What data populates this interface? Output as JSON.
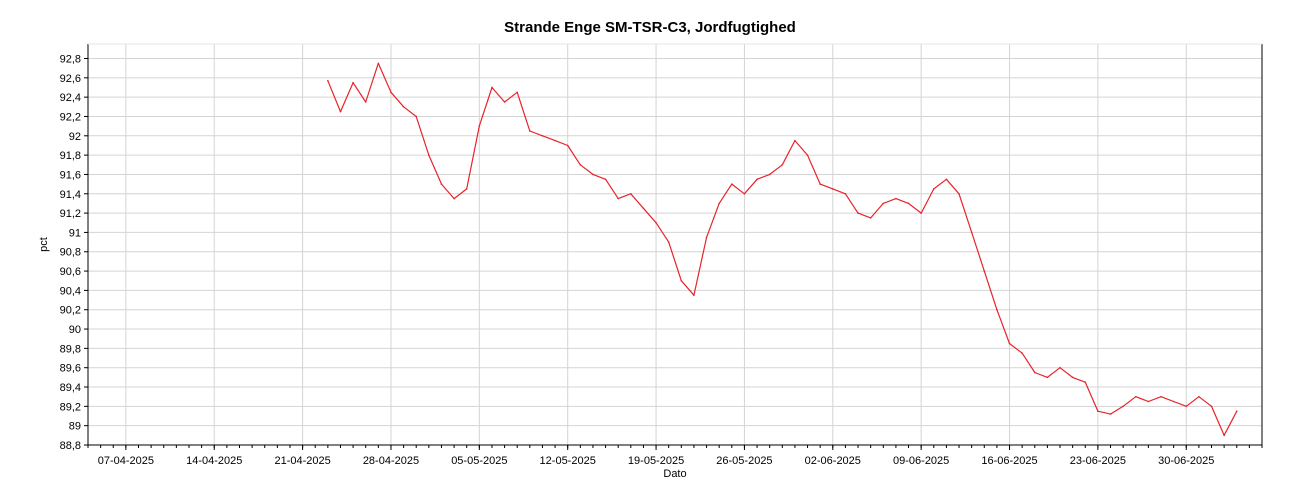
{
  "chart_data": {
    "type": "line",
    "title": "Strande Enge SM-TSR-C3, Jordfugtighed",
    "xlabel": "Dato",
    "ylabel": "pct",
    "x_ticks": [
      "07-04-2025",
      "14-04-2025",
      "21-04-2025",
      "28-04-2025",
      "05-05-2025",
      "12-05-2025",
      "19-05-2025",
      "26-05-2025",
      "02-06-2025",
      "09-06-2025",
      "16-06-2025",
      "23-06-2025",
      "30-06-2025"
    ],
    "y_ticks": [
      "88,8",
      "89",
      "89,2",
      "89,4",
      "89,6",
      "89,8",
      "90",
      "90,2",
      "90,4",
      "90,6",
      "90,8",
      "91",
      "91,2",
      "91,4",
      "91,6",
      "91,8",
      "92",
      "92,2",
      "92,4",
      "92,6",
      "92,8"
    ],
    "xlim": [
      "2025-04-04",
      "2025-07-06"
    ],
    "ylim": [
      88.8,
      92.95
    ],
    "grid": true,
    "series": [
      {
        "color": "#e8232a",
        "points": [
          [
            "2025-04-23",
            92.57
          ],
          [
            "2025-04-24",
            92.25
          ],
          [
            "2025-04-25",
            92.55
          ],
          [
            "2025-04-26",
            92.35
          ],
          [
            "2025-04-27",
            92.75
          ],
          [
            "2025-04-28",
            92.45
          ],
          [
            "2025-04-29",
            92.3
          ],
          [
            "2025-04-30",
            92.2
          ],
          [
            "2025-05-01",
            91.8
          ],
          [
            "2025-05-02",
            91.5
          ],
          [
            "2025-05-03",
            91.35
          ],
          [
            "2025-05-04",
            91.45
          ],
          [
            "2025-05-05",
            92.1
          ],
          [
            "2025-05-06",
            92.5
          ],
          [
            "2025-05-07",
            92.35
          ],
          [
            "2025-05-08",
            92.45
          ],
          [
            "2025-05-09",
            92.05
          ],
          [
            "2025-05-10",
            92.0
          ],
          [
            "2025-05-11",
            91.95
          ],
          [
            "2025-05-12",
            91.9
          ],
          [
            "2025-05-13",
            91.7
          ],
          [
            "2025-05-14",
            91.6
          ],
          [
            "2025-05-15",
            91.55
          ],
          [
            "2025-05-16",
            91.35
          ],
          [
            "2025-05-17",
            91.4
          ],
          [
            "2025-05-18",
            91.25
          ],
          [
            "2025-05-19",
            91.1
          ],
          [
            "2025-05-20",
            90.9
          ],
          [
            "2025-05-21",
            90.5
          ],
          [
            "2025-05-22",
            90.35
          ],
          [
            "2025-05-23",
            90.95
          ],
          [
            "2025-05-24",
            91.3
          ],
          [
            "2025-05-25",
            91.5
          ],
          [
            "2025-05-26",
            91.4
          ],
          [
            "2025-05-27",
            91.55
          ],
          [
            "2025-05-28",
            91.6
          ],
          [
            "2025-05-29",
            91.7
          ],
          [
            "2025-05-30",
            91.95
          ],
          [
            "2025-05-31",
            91.8
          ],
          [
            "2025-06-01",
            91.5
          ],
          [
            "2025-06-02",
            91.45
          ],
          [
            "2025-06-03",
            91.4
          ],
          [
            "2025-06-04",
            91.2
          ],
          [
            "2025-06-05",
            91.15
          ],
          [
            "2025-06-06",
            91.3
          ],
          [
            "2025-06-07",
            91.35
          ],
          [
            "2025-06-08",
            91.3
          ],
          [
            "2025-06-09",
            91.2
          ],
          [
            "2025-06-10",
            91.45
          ],
          [
            "2025-06-11",
            91.55
          ],
          [
            "2025-06-12",
            91.4
          ],
          [
            "2025-06-13",
            91.0
          ],
          [
            "2025-06-14",
            90.6
          ],
          [
            "2025-06-15",
            90.2
          ],
          [
            "2025-06-16",
            89.85
          ],
          [
            "2025-06-17",
            89.75
          ],
          [
            "2025-06-18",
            89.55
          ],
          [
            "2025-06-19",
            89.5
          ],
          [
            "2025-06-20",
            89.6
          ],
          [
            "2025-06-21",
            89.5
          ],
          [
            "2025-06-22",
            89.45
          ],
          [
            "2025-06-23",
            89.15
          ],
          [
            "2025-06-24",
            89.12
          ],
          [
            "2025-06-25",
            89.2
          ],
          [
            "2025-06-26",
            89.3
          ],
          [
            "2025-06-27",
            89.25
          ],
          [
            "2025-06-28",
            89.3
          ],
          [
            "2025-06-29",
            89.25
          ],
          [
            "2025-06-30",
            89.2
          ],
          [
            "2025-07-01",
            89.3
          ],
          [
            "2025-07-02",
            89.2
          ],
          [
            "2025-07-03",
            88.9
          ],
          [
            "2025-07-04",
            89.15
          ]
        ]
      }
    ]
  }
}
